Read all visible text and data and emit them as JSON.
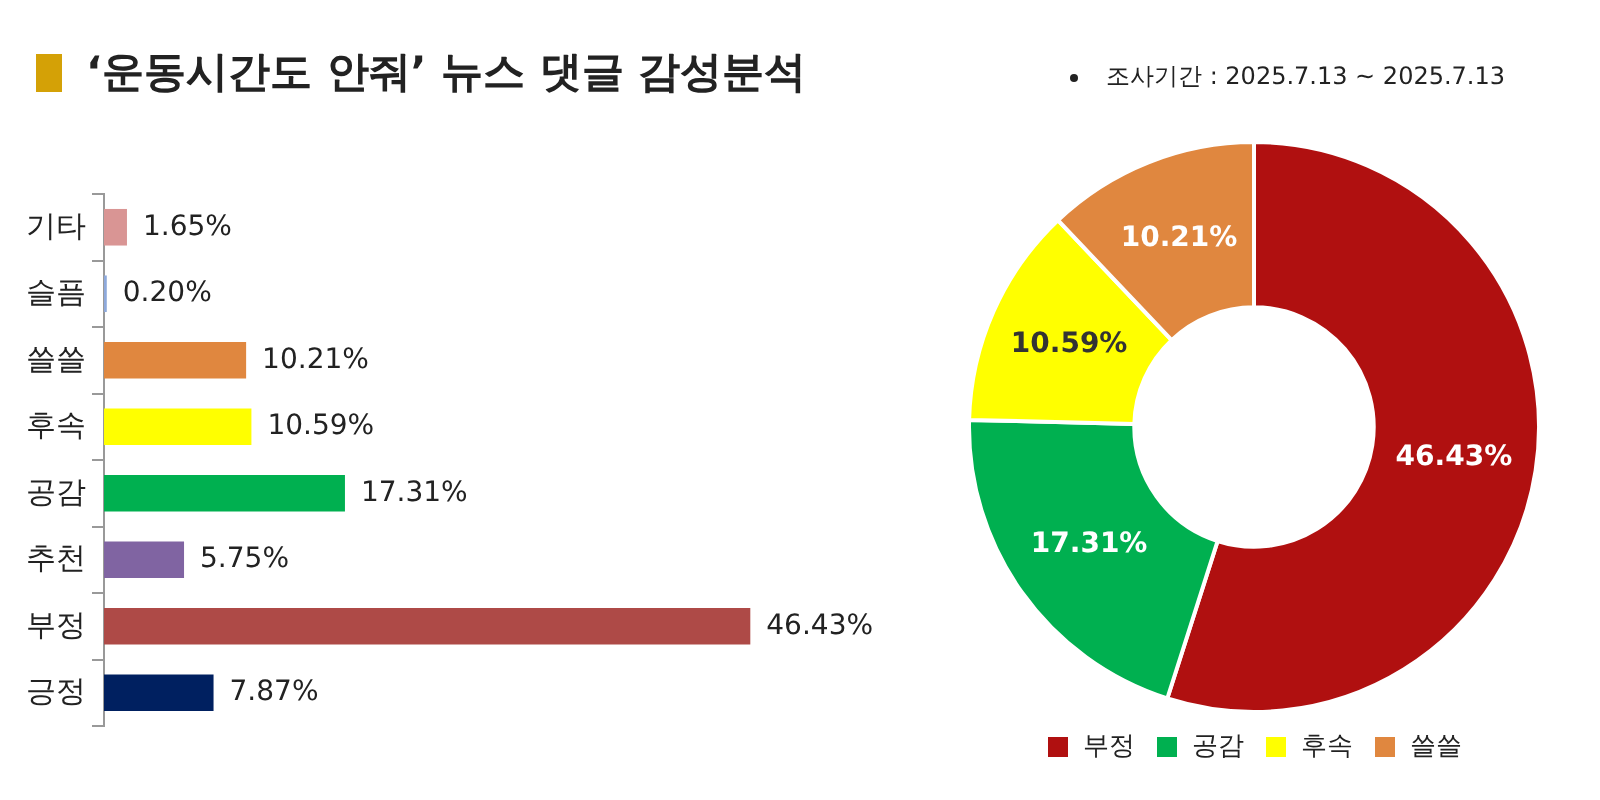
{
  "chart_data": [
    {
      "type": "bar",
      "title": "‘운동시간도 안줘’ 뉴스 댓글 감성분석",
      "orientation": "horizontal",
      "tick_labels": "y",
      "categories": [
        "기타",
        "슬픔",
        "쓸쓸",
        "후속",
        "공감",
        "추천",
        "부정",
        "긍정"
      ],
      "values": [
        1.65,
        0.2,
        10.21,
        10.59,
        17.31,
        5.75,
        46.43,
        7.87
      ],
      "colors": [
        "#d99594",
        "#8ea9db",
        "#e0873f",
        "#ffff00",
        "#00b050",
        "#8064a2",
        "#ae4a47",
        "#002060"
      ],
      "value_labels": [
        "1.65%",
        "0.20%",
        "10.21%",
        "10.59%",
        "17.31%",
        "5.75%",
        "46.43%",
        "7.87%"
      ]
    },
    {
      "type": "donut",
      "annotations": [
        "조사기간 : 2025.7.13 ~ 2025.7.13"
      ],
      "legend": "bottom",
      "categories": [
        "부정",
        "공감",
        "후속",
        "쓸쓸"
      ],
      "values": [
        46.43,
        17.31,
        10.59,
        10.21
      ],
      "colors": [
        "#b01010",
        "#00b050",
        "#ffff00",
        "#e0873f"
      ],
      "value_labels": [
        "46.43%",
        "17.31%",
        "10.59%",
        "10.21%"
      ]
    }
  ]
}
